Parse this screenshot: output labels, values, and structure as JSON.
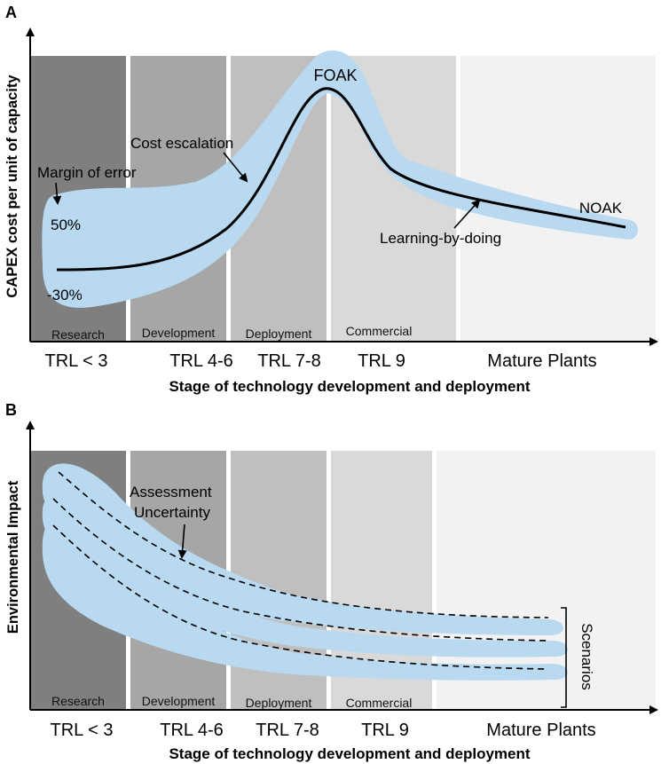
{
  "panel_a": {
    "letter": "A",
    "y_axis_title": "CAPEX cost per unit of capacity",
    "x_axis_title": "Stage of technology development and deployment",
    "stages": [
      "Research",
      "Development",
      "Deployment",
      "Commercial"
    ],
    "trl_labels": [
      "TRL < 3",
      "TRL 4-6",
      "TRL 7-8",
      "TRL 9",
      "Mature Plants"
    ],
    "annotations": {
      "foak": "FOAK",
      "noak": "NOAK",
      "cost_escalation": "Cost escalation",
      "margin_of_error": "Margin of error",
      "upper_margin": "50%",
      "lower_margin": "-30%",
      "learning_by_doing": "Learning-by-doing"
    }
  },
  "panel_b": {
    "letter": "B",
    "y_axis_title": "Environmental Impact",
    "x_axis_title": "Stage of technology development and deployment",
    "stages": [
      "Research",
      "Development",
      "Deployment",
      "Commercial"
    ],
    "trl_labels": [
      "TRL < 3",
      "TRL 4-6",
      "TRL 7-8",
      "TRL 9",
      "Mature Plants"
    ],
    "annotations": {
      "assessment_line1": "Assessment",
      "assessment_line2": "Uncertainty",
      "scenarios": "Scenarios"
    }
  },
  "colors": {
    "band": "#b8d9ef",
    "stage1": "#7f7f7f",
    "stage2": "#a6a6a6",
    "stage3": "#bfbfbf",
    "stage4": "#d9d9d9",
    "stage5": "#f2f2f2"
  }
}
